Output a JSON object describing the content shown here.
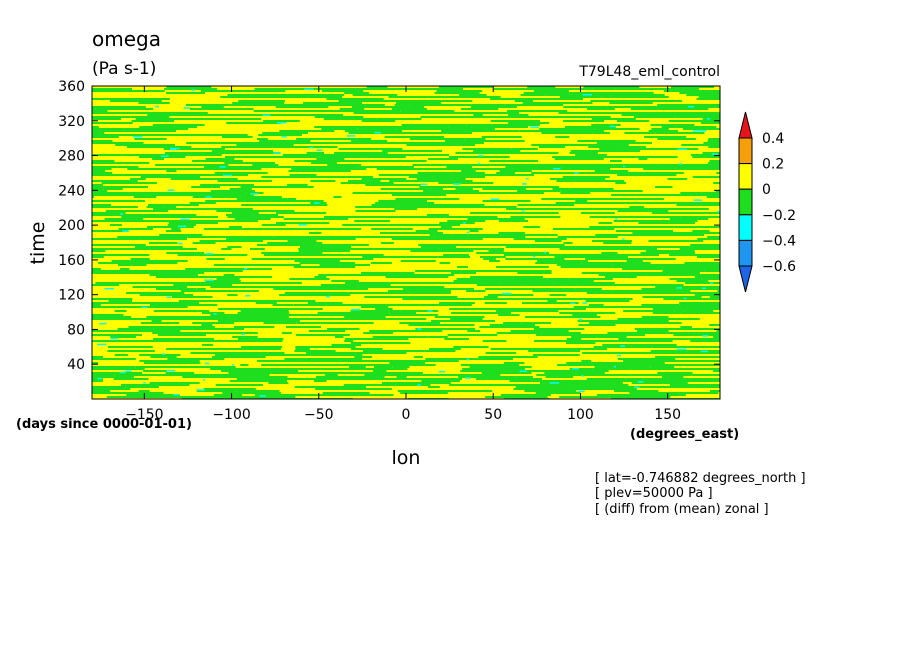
{
  "chart_data": {
    "type": "heatmap",
    "title": "omega",
    "units": "(Pa s-1)",
    "run_label": "T79L48_eml_control",
    "xlabel": "lon",
    "ylabel": "time",
    "x_units": "(degrees_east)",
    "y_units": "(days since 0000-01-01)",
    "xlim": [
      -180,
      180
    ],
    "ylim": [
      0,
      360
    ],
    "x_ticks": [
      -150,
      -100,
      -50,
      0,
      50,
      100,
      150
    ],
    "y_ticks": [
      40,
      80,
      120,
      160,
      200,
      240,
      280,
      320,
      360
    ],
    "x_tick_labels": [
      "−150",
      "−100",
      "−50",
      "0",
      "50",
      "100",
      "150"
    ],
    "y_tick_labels": [
      "40",
      "80",
      "120",
      "160",
      "200",
      "240",
      "280",
      "320",
      "360"
    ],
    "colorbar": {
      "levels": [
        0.4,
        0.2,
        0,
        -0.2,
        -0.4,
        -0.6
      ],
      "labels": [
        "0.4",
        "0.2",
        "0",
        "−0.2",
        "−0.4",
        "−0.6"
      ],
      "colors": [
        "#e8141a",
        "#f5a00a",
        "#ffff00",
        "#1ede1e",
        "#00ffff",
        "#1e96f0",
        "#1e64e6"
      ]
    },
    "field_summary": "alternating yellow (0 to 0.2) and green (-0.2 to 0) zonal streaks with sparse cyan (-0.4 to -0.2) patches",
    "annotations": [
      "[ lat=-0.746882 degrees_north ]",
      "[ plev=50000 Pa ]",
      "[ (diff) from (mean) zonal ]"
    ]
  }
}
